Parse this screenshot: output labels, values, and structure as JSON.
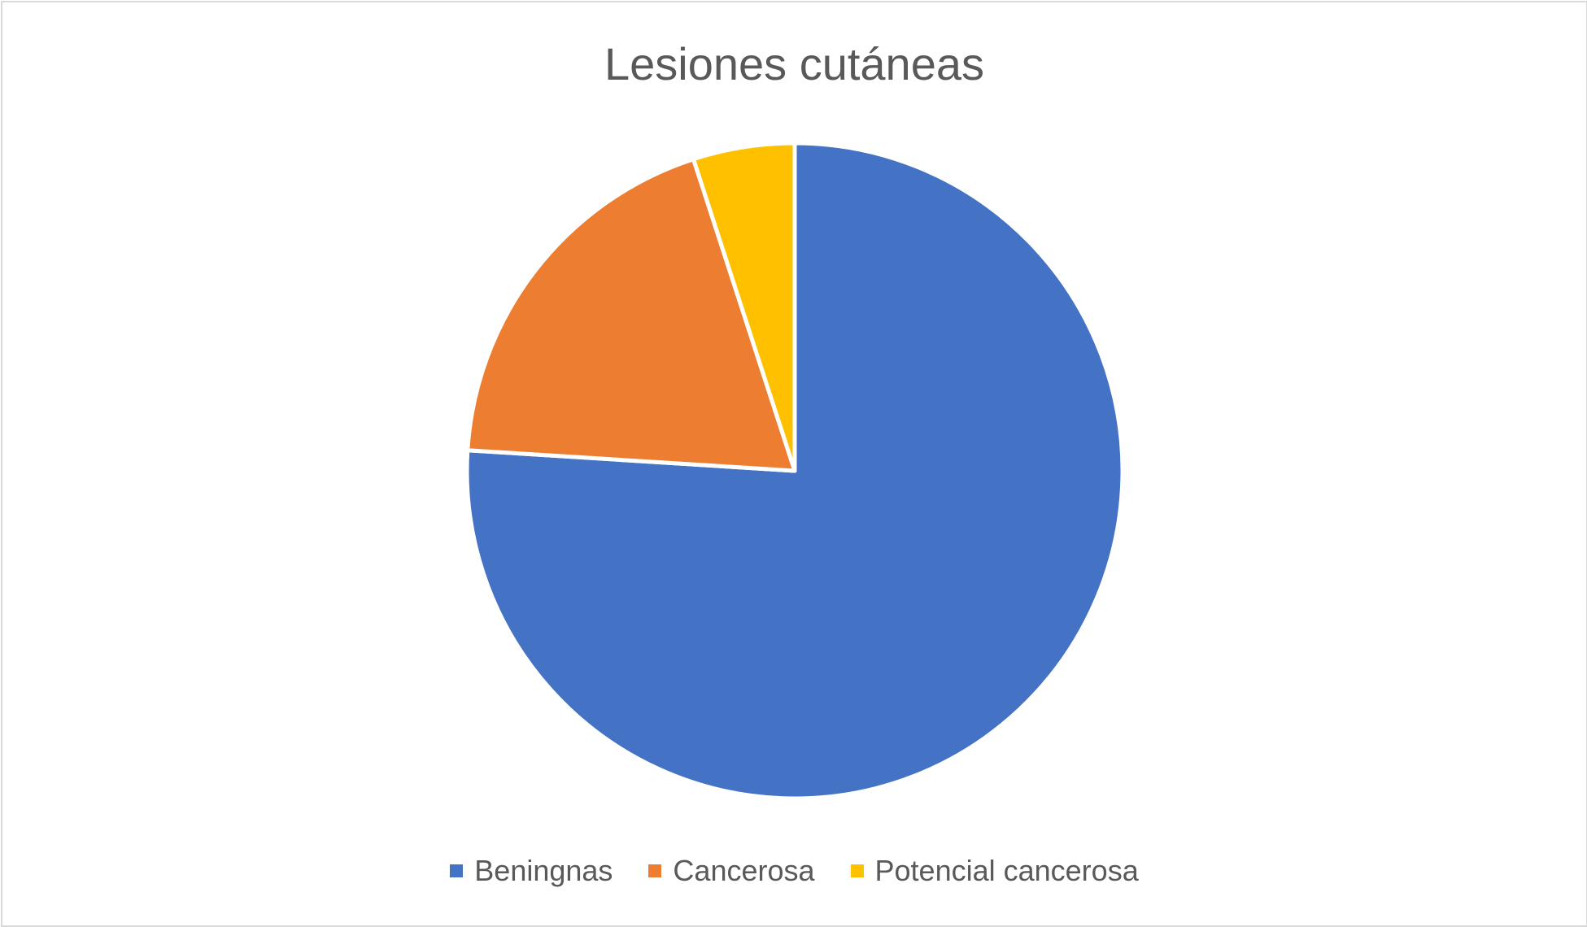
{
  "chart_data": {
    "type": "pie",
    "title": "Lesiones cutáneas",
    "categories": [
      "Beningnas",
      "Cancerosa",
      "Potencial cancerosa"
    ],
    "values": [
      76,
      19,
      5
    ],
    "colors": [
      "#4472c4",
      "#ed7d31",
      "#ffc000"
    ],
    "legend_position": "bottom",
    "start_angle": "top-clockwise"
  }
}
